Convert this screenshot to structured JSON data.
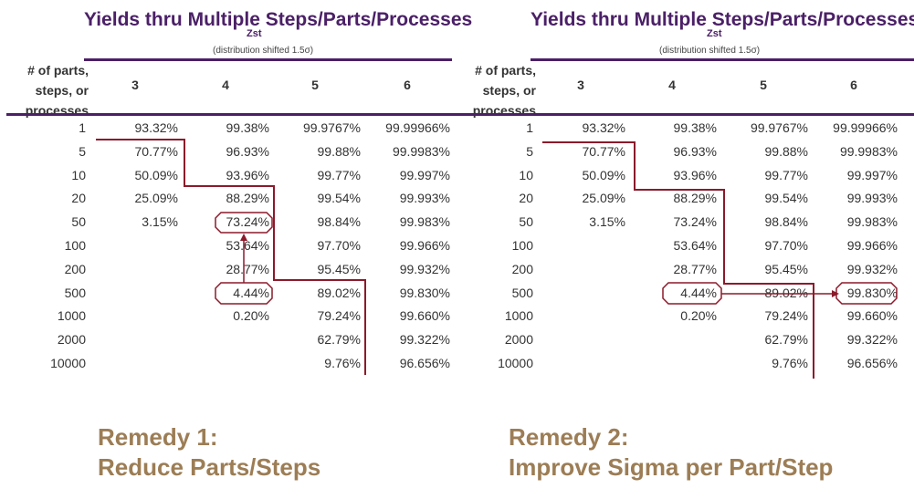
{
  "panels": [
    {
      "title": "Yields thru Multiple Steps/Parts/Processes",
      "zst_label": "Zst",
      "shift_note": "(distribution shifted 1.5σ)",
      "row_header": [
        "# of parts,",
        "steps, or",
        "processes"
      ],
      "columns": [
        "3",
        "4",
        "5",
        "6"
      ],
      "rows": [
        {
          "n": "1",
          "v": [
            "93.32%",
            "99.38%",
            "99.9767%",
            "99.99966%"
          ]
        },
        {
          "n": "5",
          "v": [
            "70.77%",
            "96.93%",
            "99.88%",
            "99.9983%"
          ]
        },
        {
          "n": "10",
          "v": [
            "50.09%",
            "93.96%",
            "99.77%",
            "99.997%"
          ]
        },
        {
          "n": "20",
          "v": [
            "25.09%",
            "88.29%",
            "99.54%",
            "99.993%"
          ]
        },
        {
          "n": "50",
          "v": [
            "3.15%",
            "73.24%",
            "98.84%",
            "99.983%"
          ]
        },
        {
          "n": "100",
          "v": [
            "",
            "53.64%",
            "97.70%",
            "99.966%"
          ]
        },
        {
          "n": "200",
          "v": [
            "",
            "28.77%",
            "95.45%",
            "99.932%"
          ]
        },
        {
          "n": "500",
          "v": [
            "",
            "4.44%",
            "89.02%",
            "99.830%"
          ]
        },
        {
          "n": "1000",
          "v": [
            "",
            "0.20%",
            "79.24%",
            "99.660%"
          ]
        },
        {
          "n": "2000",
          "v": [
            "",
            "",
            "62.79%",
            "99.322%"
          ]
        },
        {
          "n": "10000",
          "v": [
            "",
            "",
            "9.76%",
            "96.656%"
          ]
        }
      ],
      "remedy": [
        "Remedy 1:",
        "Reduce Parts/Steps"
      ]
    },
    {
      "title": "Yields thru Multiple Steps/Parts/Processes",
      "zst_label": "Zst",
      "shift_note": "(distribution shifted 1.5σ)",
      "row_header": [
        "# of parts,",
        "steps, or",
        "processes"
      ],
      "columns": [
        "3",
        "4",
        "5",
        "6"
      ],
      "rows": [
        {
          "n": "1",
          "v": [
            "93.32%",
            "99.38%",
            "99.9767%",
            "99.99966%"
          ]
        },
        {
          "n": "5",
          "v": [
            "70.77%",
            "96.93%",
            "99.88%",
            "99.9983%"
          ]
        },
        {
          "n": "10",
          "v": [
            "50.09%",
            "93.96%",
            "99.77%",
            "99.997%"
          ]
        },
        {
          "n": "20",
          "v": [
            "25.09%",
            "88.29%",
            "99.54%",
            "99.993%"
          ]
        },
        {
          "n": "50",
          "v": [
            "3.15%",
            "73.24%",
            "98.84%",
            "99.983%"
          ]
        },
        {
          "n": "100",
          "v": [
            "",
            "53.64%",
            "97.70%",
            "99.966%"
          ]
        },
        {
          "n": "200",
          "v": [
            "",
            "28.77%",
            "95.45%",
            "99.932%"
          ]
        },
        {
          "n": "500",
          "v": [
            "",
            "4.44%",
            "89.02%",
            "99.830%"
          ]
        },
        {
          "n": "1000",
          "v": [
            "",
            "0.20%",
            "79.24%",
            "99.660%"
          ]
        },
        {
          "n": "2000",
          "v": [
            "",
            "",
            "62.79%",
            "99.322%"
          ]
        },
        {
          "n": "10000",
          "v": [
            "",
            "",
            "9.76%",
            "96.656%"
          ]
        }
      ],
      "remedy": [
        "Remedy 2:",
        "Improve Sigma per Part/Step"
      ]
    }
  ],
  "colors": {
    "title": "#4b2067",
    "annotation": "#8b1a2b",
    "remedy": "#9c7d55"
  }
}
